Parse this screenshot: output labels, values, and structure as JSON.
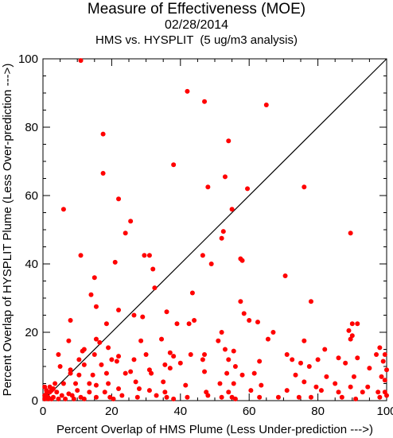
{
  "chart_data": {
    "type": "scatter",
    "title": "Measure of Effectiveness (MOE)",
    "subtitle": "02/28/2014",
    "subtitle2": "HMS vs. HYSPLIT  (5 ug/m3 analysis)",
    "xlabel": "Percent Overlap of HMS Plume (Less Under-prediction --->)",
    "ylabel": "Percent Overlap of HYSPLIT Plume (Less Over-prediction --->)",
    "xlim": [
      0,
      100
    ],
    "ylim": [
      0,
      100
    ],
    "xticks": [
      "0",
      "20",
      "40",
      "60",
      "80",
      "100"
    ],
    "yticks": [
      "0",
      "20",
      "40",
      "60",
      "80",
      "100"
    ],
    "grid": false,
    "reference_line": "y = x",
    "marker_color": "#ff0000",
    "line_color": "#000000",
    "series": [
      {
        "points": [
          [
            11,
            99.5
          ],
          [
            42,
            90.5
          ],
          [
            47,
            87.5
          ],
          [
            65,
            86.5
          ],
          [
            17.5,
            78
          ],
          [
            54,
            76
          ],
          [
            38,
            69
          ],
          [
            17.5,
            66.5
          ],
          [
            53,
            65.5
          ],
          [
            48,
            62.5
          ],
          [
            76,
            62.5
          ],
          [
            59.5,
            62
          ],
          [
            22,
            59
          ],
          [
            25.5,
            52.5
          ],
          [
            55,
            56
          ],
          [
            6,
            56
          ],
          [
            52.5,
            49.5
          ],
          [
            89.5,
            49
          ],
          [
            24,
            49
          ],
          [
            52,
            47.5
          ],
          [
            29.5,
            42.5
          ],
          [
            31,
            42.5
          ],
          [
            11,
            42.5
          ],
          [
            21,
            40.5
          ],
          [
            46.5,
            42.5
          ],
          [
            57.5,
            41.5
          ],
          [
            58,
            41
          ],
          [
            49,
            40
          ],
          [
            32,
            38.5
          ],
          [
            15,
            36
          ],
          [
            70.5,
            36.5
          ],
          [
            32.5,
            33
          ],
          [
            14,
            31
          ],
          [
            43.5,
            31.5
          ],
          [
            22,
            26.5
          ],
          [
            15.5,
            27.5
          ],
          [
            26.5,
            25
          ],
          [
            36,
            26
          ],
          [
            29,
            24.5
          ],
          [
            44,
            23.5
          ],
          [
            57.5,
            29
          ],
          [
            78,
            29
          ],
          [
            8,
            23.5
          ],
          [
            58.5,
            25.5
          ],
          [
            18.5,
            22.5
          ],
          [
            39,
            22.5
          ],
          [
            42.5,
            22.5
          ],
          [
            52,
            20
          ],
          [
            62.5,
            23
          ],
          [
            60,
            23.5
          ],
          [
            90,
            22.5
          ],
          [
            89,
            20.5
          ],
          [
            91.5,
            22.5
          ],
          [
            67,
            20
          ],
          [
            7.5,
            17.5
          ],
          [
            15.5,
            18
          ],
          [
            34.5,
            18
          ],
          [
            28.5,
            17.5
          ],
          [
            16.5,
            17
          ],
          [
            19,
            15.5
          ],
          [
            4.5,
            13.5
          ],
          [
            12,
            15
          ],
          [
            11.5,
            14.5
          ],
          [
            15,
            13.5
          ],
          [
            37,
            14
          ],
          [
            38,
            13
          ],
          [
            43,
            13.5
          ],
          [
            51,
            17.5
          ],
          [
            53,
            15
          ],
          [
            55.5,
            14.5
          ],
          [
            47,
            13.5
          ],
          [
            65.5,
            18
          ],
          [
            71,
            13.5
          ],
          [
            76,
            17.5
          ],
          [
            82,
            15
          ],
          [
            90,
            19
          ],
          [
            89.5,
            18
          ],
          [
            98,
            15.5
          ],
          [
            97,
            13.5
          ],
          [
            99.5,
            13.5
          ],
          [
            5,
            10
          ],
          [
            8,
            9
          ],
          [
            10.5,
            12
          ],
          [
            12,
            10.5
          ],
          [
            17,
            10.5
          ],
          [
            20,
            12
          ],
          [
            21.5,
            11.5
          ],
          [
            22,
            13
          ],
          [
            26.5,
            12
          ],
          [
            30,
            13.5
          ],
          [
            31,
            9
          ],
          [
            35.5,
            10.5
          ],
          [
            40,
            11
          ],
          [
            46.5,
            12
          ],
          [
            54,
            12
          ],
          [
            56,
            10
          ],
          [
            63,
            11.5
          ],
          [
            72.5,
            12
          ],
          [
            75,
            11
          ],
          [
            77.5,
            10
          ],
          [
            80,
            12
          ],
          [
            86,
            12.5
          ],
          [
            88,
            11
          ],
          [
            91.5,
            12.5
          ],
          [
            95,
            9.5
          ],
          [
            99,
            11.5
          ],
          [
            100,
            9
          ],
          [
            8,
            8
          ],
          [
            10.5,
            7.5
          ],
          [
            14.5,
            7.5
          ],
          [
            18.5,
            8
          ],
          [
            24,
            8
          ],
          [
            25.5,
            8.5
          ],
          [
            31.5,
            8
          ],
          [
            37,
            9.5
          ],
          [
            47,
            8.5
          ],
          [
            53.5,
            8
          ],
          [
            58,
            7.5
          ],
          [
            61.5,
            8
          ],
          [
            73.5,
            7.5
          ],
          [
            82.5,
            7
          ],
          [
            90.5,
            7
          ],
          [
            98.5,
            7
          ],
          [
            99.5,
            6
          ],
          [
            6,
            5
          ],
          [
            9.5,
            5
          ],
          [
            13.5,
            5
          ],
          [
            15.5,
            4.5
          ],
          [
            19,
            5
          ],
          [
            27,
            5.5
          ],
          [
            35,
            5.5
          ],
          [
            41.5,
            4.5
          ],
          [
            51.5,
            5
          ],
          [
            55.5,
            5
          ],
          [
            63.5,
            4.5
          ],
          [
            76,
            5.5
          ],
          [
            79.5,
            4
          ],
          [
            85,
            5
          ],
          [
            89.5,
            4
          ],
          [
            94.5,
            4
          ],
          [
            1,
            3
          ],
          [
            2.5,
            3
          ],
          [
            4,
            2.5
          ],
          [
            7.5,
            2
          ],
          [
            10,
            3
          ],
          [
            13.5,
            2.5
          ],
          [
            18,
            2.5
          ],
          [
            22,
            3.5
          ],
          [
            28,
            3.5
          ],
          [
            31,
            3
          ],
          [
            35.5,
            2.5
          ],
          [
            47.5,
            2.5
          ],
          [
            54,
            2.5
          ],
          [
            60.5,
            3
          ],
          [
            71,
            3
          ],
          [
            81,
            3
          ],
          [
            86,
            2.5
          ],
          [
            93,
            2.5
          ],
          [
            97.5,
            2.5
          ],
          [
            99.5,
            2.5
          ],
          [
            0.5,
            1.5
          ],
          [
            1.5,
            1
          ],
          [
            3,
            1
          ],
          [
            5.5,
            1.5
          ],
          [
            8.5,
            1.5
          ],
          [
            11,
            1
          ],
          [
            15.5,
            1
          ],
          [
            19.5,
            1
          ],
          [
            23,
            1.5
          ],
          [
            27.5,
            1
          ],
          [
            33,
            1.5
          ],
          [
            36,
            1
          ],
          [
            42,
            1
          ],
          [
            48,
            1.5
          ],
          [
            52,
            1
          ],
          [
            55,
            1
          ],
          [
            63,
            1
          ],
          [
            68.5,
            1
          ],
          [
            74.5,
            1
          ],
          [
            78,
            1
          ],
          [
            87,
            1
          ],
          [
            98,
            1
          ],
          [
            100,
            1.5
          ],
          [
            0.5,
            0.5
          ],
          [
            1.5,
            0.5
          ],
          [
            2.5,
            0.5
          ],
          [
            4.5,
            0.5
          ],
          [
            6.5,
            0.5
          ],
          [
            9,
            0.5
          ],
          [
            12,
            0.5
          ],
          [
            20.5,
            0.5
          ],
          [
            38,
            0.5
          ],
          [
            56,
            0.5
          ],
          [
            91,
            0.5
          ],
          [
            2,
            4
          ],
          [
            3.5,
            5
          ],
          [
            0.5,
            4
          ],
          [
            1,
            2
          ],
          [
            2,
            2.5
          ],
          [
            3,
            3.5
          ]
        ]
      }
    ]
  }
}
